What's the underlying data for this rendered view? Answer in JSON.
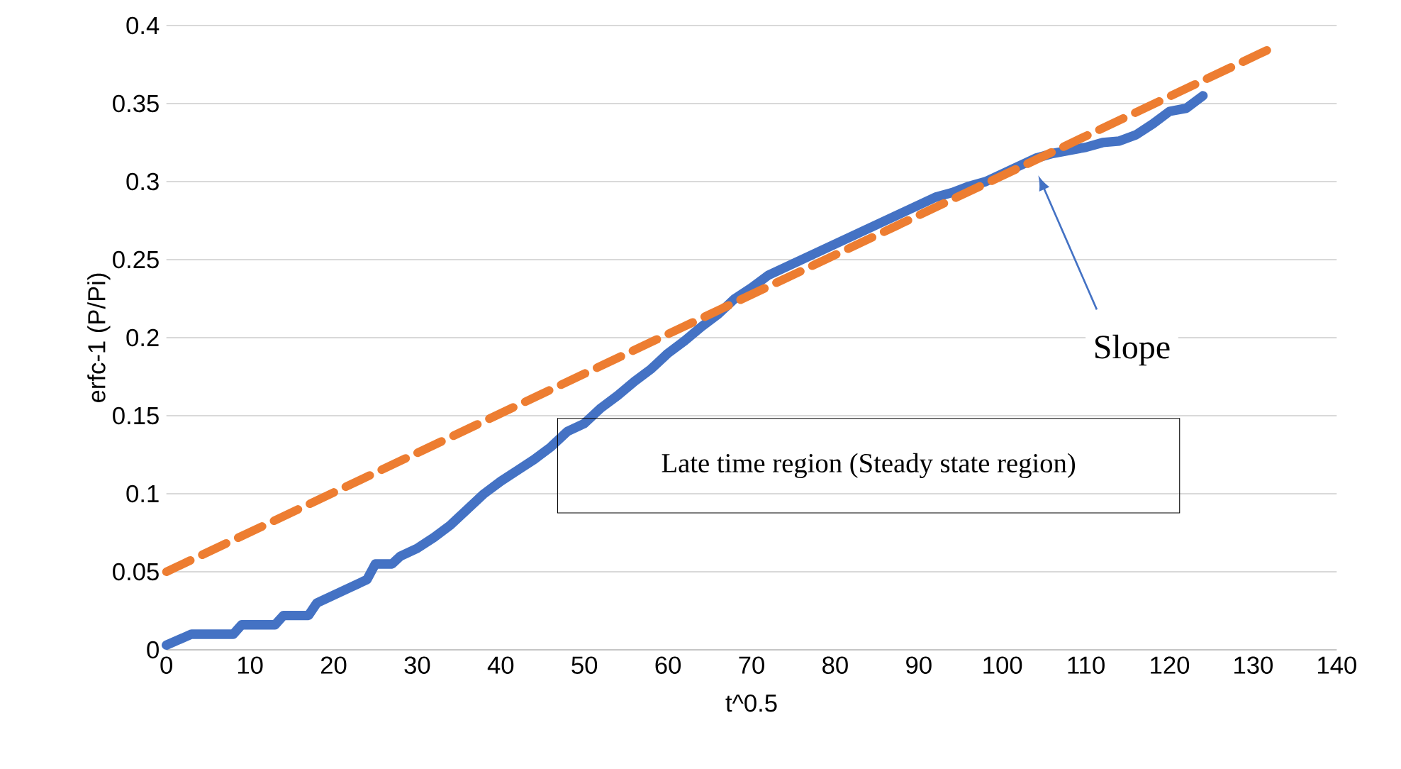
{
  "chart_data": {
    "type": "line",
    "xlabel": "t^0.5",
    "ylabel": "erfc-1 (P/Pi)",
    "xlim": [
      0,
      140
    ],
    "xticks": [
      0,
      10,
      20,
      30,
      40,
      50,
      60,
      70,
      80,
      90,
      100,
      110,
      120,
      130,
      140
    ],
    "ylim": [
      0,
      0.4
    ],
    "yticks": [
      0,
      0.05,
      0.1,
      0.15,
      0.2,
      0.25,
      0.3,
      0.35,
      0.4
    ],
    "grid": "y",
    "series": [
      {
        "color": "#4472c4",
        "line_style": "solid",
        "x": [
          0,
          3,
          8,
          9,
          13,
          14,
          17,
          18,
          20,
          22,
          24,
          25,
          27,
          28,
          30,
          32,
          34,
          36,
          38,
          40,
          42,
          44,
          46,
          48,
          50,
          52,
          54,
          56,
          58,
          60,
          62,
          64,
          66,
          68,
          70,
          72,
          74,
          76,
          78,
          80,
          82,
          84,
          86,
          88,
          90,
          92,
          94,
          96,
          98,
          100,
          102,
          104,
          106,
          108,
          110,
          112,
          114,
          116,
          118,
          120,
          122,
          124
        ],
        "values": [
          0.003,
          0.01,
          0.01,
          0.016,
          0.016,
          0.022,
          0.022,
          0.03,
          0.035,
          0.04,
          0.045,
          0.055,
          0.055,
          0.06,
          0.065,
          0.072,
          0.08,
          0.09,
          0.1,
          0.108,
          0.115,
          0.122,
          0.13,
          0.14,
          0.145,
          0.155,
          0.163,
          0.172,
          0.18,
          0.19,
          0.198,
          0.207,
          0.215,
          0.225,
          0.232,
          0.24,
          0.245,
          0.25,
          0.255,
          0.26,
          0.265,
          0.27,
          0.275,
          0.28,
          0.285,
          0.29,
          0.293,
          0.297,
          0.3,
          0.305,
          0.31,
          0.315,
          0.318,
          0.32,
          0.322,
          0.325,
          0.326,
          0.33,
          0.337,
          0.345,
          0.347,
          0.355
        ]
      },
      {
        "color": "#ed7d31",
        "line_style": "dashed",
        "x": [
          0,
          132
        ],
        "values": [
          0.05,
          0.385
        ]
      }
    ],
    "annotations": [
      "Slope",
      "Late time region (Steady state region)"
    ]
  }
}
